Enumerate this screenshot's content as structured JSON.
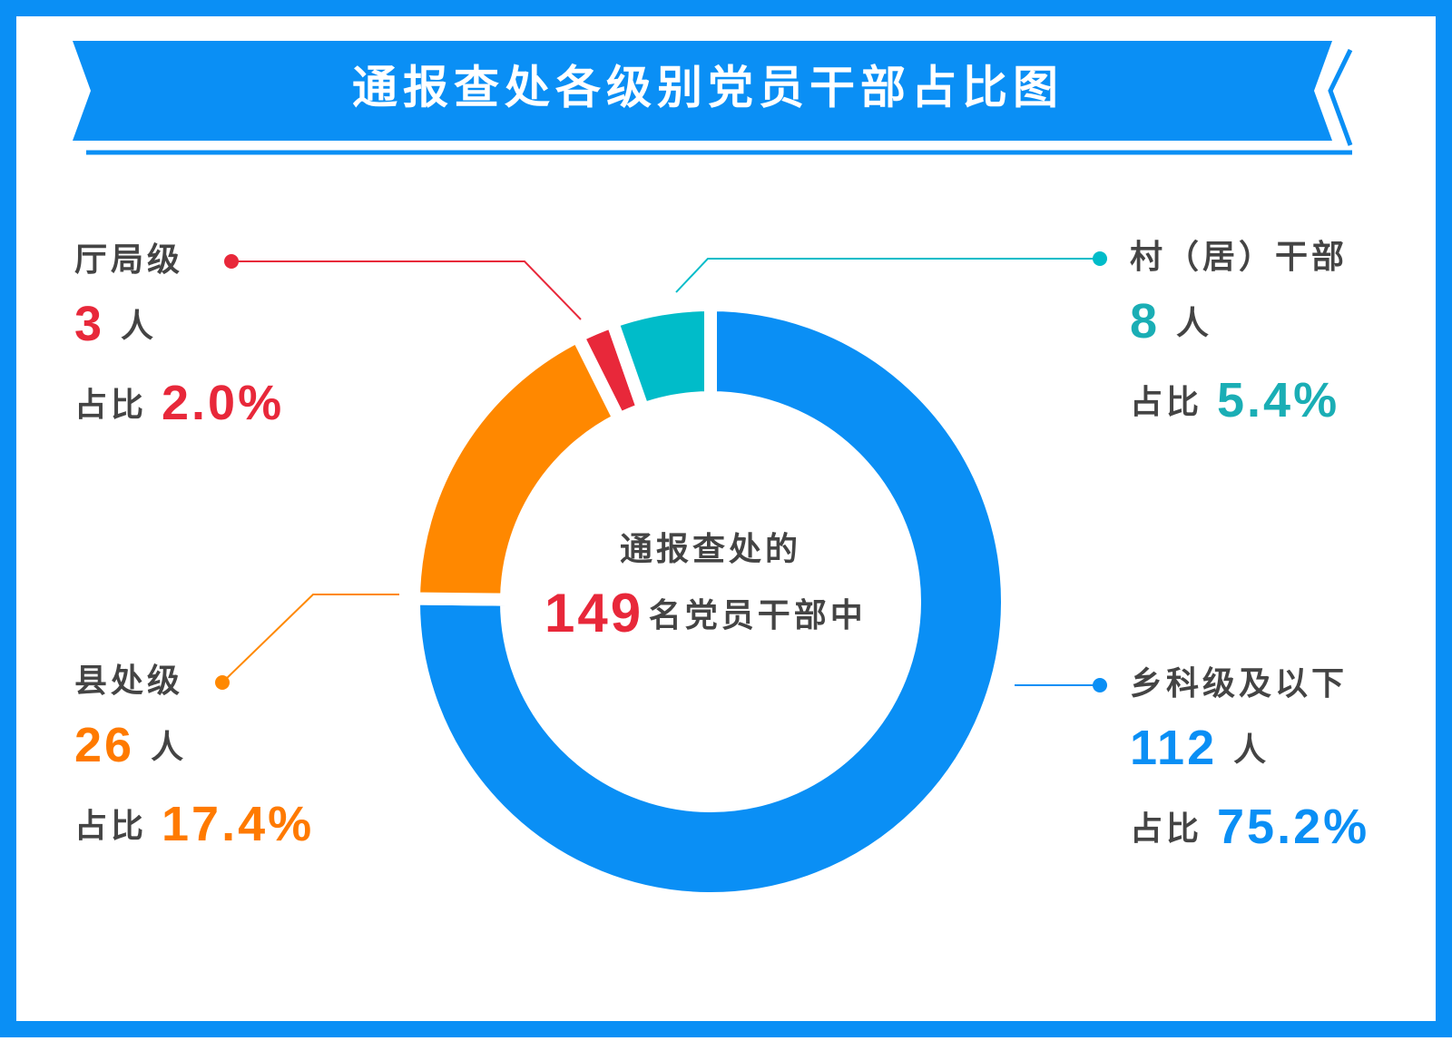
{
  "chart_data": {
    "type": "donut",
    "title": "通报查处各级别党员干部占比图",
    "center_prefix": "通报查处的",
    "total": 149,
    "center_suffix": "名党员干部中",
    "unit": "人",
    "share_label": "占比",
    "categories": [
      "乡科级及以下",
      "县处级",
      "厅局级",
      "村（居）干部"
    ],
    "values": [
      112,
      26,
      3,
      8
    ],
    "percents": [
      75.2,
      17.4,
      2.0,
      5.4
    ],
    "value_labels": [
      "75.2%",
      "17.4%",
      "2.0%",
      "5.4%"
    ],
    "colors": [
      "#0a8ff5",
      "#ff8800",
      "#e8283a",
      "#00bcc9"
    ],
    "label_colors": [
      "#0a8ff5",
      "#ff7a00",
      "#e8283a",
      "#1aaeb5"
    ]
  }
}
